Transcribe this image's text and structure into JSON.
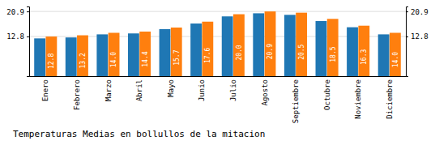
{
  "chart_data": {
    "type": "bar",
    "title": "Temperaturas Medias en bollullos de la mitacion",
    "categories": [
      "Enero",
      "Febrero",
      "Marzo",
      "Abril",
      "Mayo",
      "Junio",
      "Julio",
      "Agosto",
      "Septiembre",
      "Octubre",
      "Noviembre",
      "Diciembre"
    ],
    "series": [
      {
        "values": [
          12.2,
          12.5,
          13.5,
          13.8,
          15.2,
          17.0,
          19.3,
          20.3,
          19.8,
          17.8,
          15.8,
          13.5
        ]
      },
      {
        "values": [
          12.8,
          13.2,
          14.0,
          14.4,
          15.7,
          17.6,
          20.0,
          20.9,
          20.5,
          18.5,
          16.3,
          14.0
        ],
        "value_labels": [
          "12.8",
          "13.2",
          "14.0",
          "14.4",
          "15.7",
          "17.6",
          "20.0",
          "20.9",
          "20.5",
          "18.5",
          "16.3",
          "14.0"
        ]
      }
    ],
    "ylim": [
      0.0,
      22.5
    ],
    "yticks": [
      12.8,
      20.9
    ],
    "grid": true,
    "data_labels": true
  }
}
